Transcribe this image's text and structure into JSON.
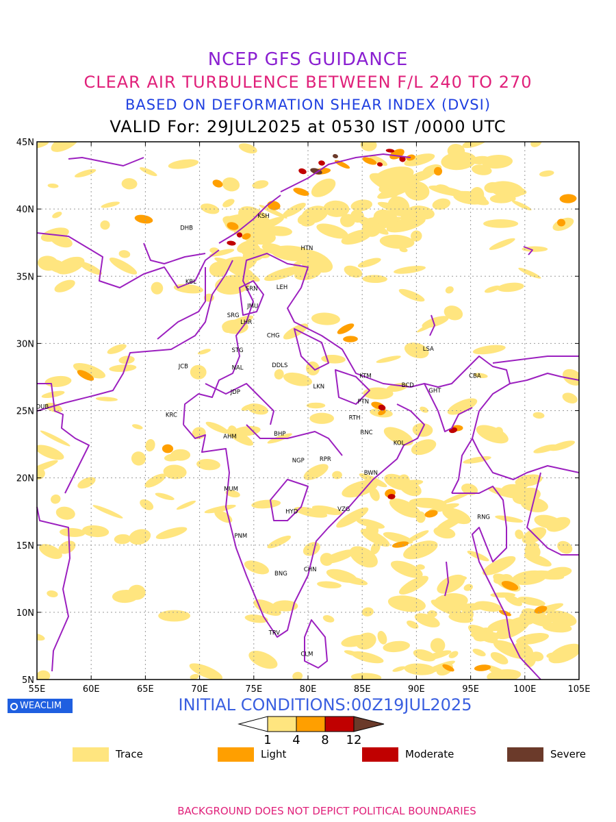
{
  "header": {
    "title1": "NCEP GFS GUIDANCE",
    "title2": "CLEAR AIR TURBULENCE BETWEEN F/L 240 TO 270",
    "title3": "BASED ON DEFORMATION SHEAR INDEX (DVSI)",
    "title4": "VALID For: 29JUL2025 at 0530 IST /0000 UTC"
  },
  "colors": {
    "title1": "#8a1fd1",
    "title2": "#e0207a",
    "title3": "#1f3fe0",
    "border": "#9b1fbf",
    "trace": "#ffe57f",
    "light": "#ff9f00",
    "moderate": "#c00000",
    "severe": "#6b3a2a",
    "brand": "#1f5fe0",
    "init": "#3a5fe0",
    "disclaimer": "#e0207a"
  },
  "map": {
    "lon_range": [
      55,
      105
    ],
    "lat_range": [
      5,
      45
    ],
    "x_ticks": [
      "55E",
      "60E",
      "65E",
      "70E",
      "75E",
      "80E",
      "85E",
      "90E",
      "95E",
      "100E",
      "105E"
    ],
    "y_ticks": [
      "5N",
      "10N",
      "15N",
      "20N",
      "25N",
      "30N",
      "35N",
      "40N",
      "45N"
    ],
    "grid": true,
    "stations": [
      {
        "code": "DHB",
        "lon": 68.8,
        "lat": 38.6
      },
      {
        "code": "KSH",
        "lon": 75.9,
        "lat": 39.5
      },
      {
        "code": "HTN",
        "lon": 79.9,
        "lat": 37.1
      },
      {
        "code": "KBL",
        "lon": 69.2,
        "lat": 34.6
      },
      {
        "code": "SRN",
        "lon": 74.8,
        "lat": 34.1
      },
      {
        "code": "LEH",
        "lon": 77.6,
        "lat": 34.2
      },
      {
        "code": "JMU",
        "lon": 74.9,
        "lat": 32.8
      },
      {
        "code": "SRG",
        "lon": 73.1,
        "lat": 32.1
      },
      {
        "code": "LHR",
        "lon": 74.3,
        "lat": 31.6
      },
      {
        "code": "CHG",
        "lon": 76.8,
        "lat": 30.6
      },
      {
        "code": "STG",
        "lon": 73.5,
        "lat": 29.5
      },
      {
        "code": "DDLS",
        "lon": 77.4,
        "lat": 28.4
      },
      {
        "code": "NAL",
        "lon": 73.5,
        "lat": 28.2
      },
      {
        "code": "JCB",
        "lon": 68.5,
        "lat": 28.3
      },
      {
        "code": "LSA",
        "lon": 91.1,
        "lat": 29.6
      },
      {
        "code": "CBA",
        "lon": 95.4,
        "lat": 27.6
      },
      {
        "code": "KTM",
        "lon": 85.3,
        "lat": 27.6
      },
      {
        "code": "BCD",
        "lon": 89.2,
        "lat": 26.9
      },
      {
        "code": "GHT",
        "lon": 91.7,
        "lat": 26.5
      },
      {
        "code": "LKN",
        "lon": 81.0,
        "lat": 26.8
      },
      {
        "code": "JDP",
        "lon": 73.3,
        "lat": 26.4
      },
      {
        "code": "PTN",
        "lon": 85.1,
        "lat": 25.7
      },
      {
        "code": "DUB",
        "lon": 55.5,
        "lat": 25.3
      },
      {
        "code": "RTH",
        "lon": 84.3,
        "lat": 24.5
      },
      {
        "code": "KRC",
        "lon": 67.4,
        "lat": 24.7
      },
      {
        "code": "AHM",
        "lon": 72.8,
        "lat": 23.1
      },
      {
        "code": "BHP",
        "lon": 77.4,
        "lat": 23.3
      },
      {
        "code": "RNC",
        "lon": 85.4,
        "lat": 23.4
      },
      {
        "code": "KOL",
        "lon": 88.4,
        "lat": 22.6
      },
      {
        "code": "NGP",
        "lon": 79.1,
        "lat": 21.3
      },
      {
        "code": "RPR",
        "lon": 81.6,
        "lat": 21.4
      },
      {
        "code": "BWN",
        "lon": 85.8,
        "lat": 20.4
      },
      {
        "code": "MUM",
        "lon": 72.9,
        "lat": 19.2
      },
      {
        "code": "HYD",
        "lon": 78.5,
        "lat": 17.5
      },
      {
        "code": "VZG",
        "lon": 83.3,
        "lat": 17.7
      },
      {
        "code": "RNG",
        "lon": 96.2,
        "lat": 17.1
      },
      {
        "code": "PNM",
        "lon": 73.8,
        "lat": 15.7
      },
      {
        "code": "CHN",
        "lon": 80.2,
        "lat": 13.2
      },
      {
        "code": "BNG",
        "lon": 77.5,
        "lat": 12.9
      },
      {
        "code": "TRV",
        "lon": 76.9,
        "lat": 8.5
      },
      {
        "code": "CLM",
        "lon": 79.9,
        "lat": 6.9
      }
    ]
  },
  "brand": {
    "label": "WEACLIM"
  },
  "init": {
    "label": "INITIAL CONDITIONS:00Z19JUL2025"
  },
  "colorbar": {
    "ticks": [
      "1",
      "4",
      "8",
      "12"
    ]
  },
  "legend": {
    "items": [
      {
        "label": "Trace",
        "color_key": "trace"
      },
      {
        "label": "Light",
        "color_key": "light"
      },
      {
        "label": "Moderate",
        "color_key": "moderate"
      },
      {
        "label": "Severe",
        "color_key": "severe"
      }
    ]
  },
  "footer": {
    "disclaimer": "BACKGROUND DOES NOT DEPICT POLITICAL BOUNDARIES"
  }
}
